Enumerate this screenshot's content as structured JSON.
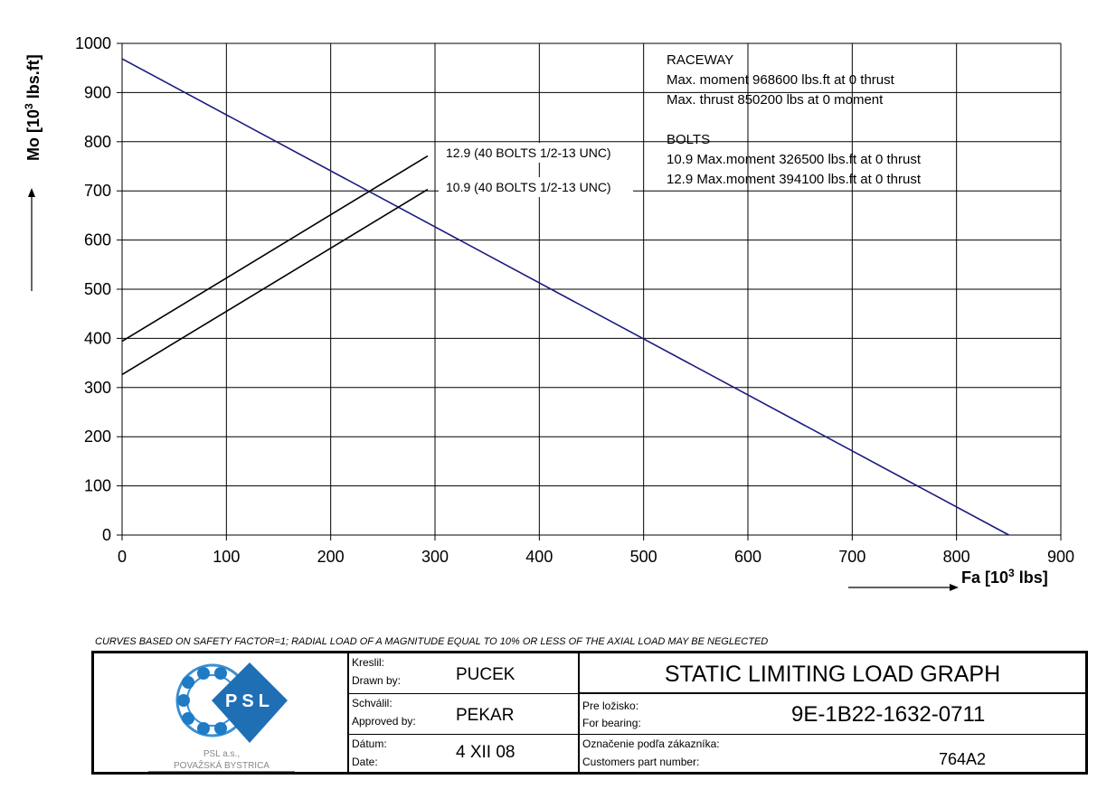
{
  "chart_data": {
    "type": "line",
    "ylabel": "Mo [10",
    "ylabel_superscript": "3",
    "ylabel_unit": " lbs.ft]",
    "xlabel": "Fa [10",
    "xlabel_superscript": "3",
    "xlabel_unit": " lbs]",
    "xlim": [
      0,
      900
    ],
    "ylim": [
      0,
      1000
    ],
    "x_ticks": [
      "0",
      "100",
      "200",
      "300",
      "400",
      "500",
      "600",
      "700",
      "800",
      "900"
    ],
    "y_ticks": [
      "0",
      "100",
      "200",
      "300",
      "400",
      "500",
      "600",
      "700",
      "800",
      "900",
      "1000"
    ],
    "grid": true,
    "series": [
      {
        "name": "RACEWAY",
        "color": "#1a1a80",
        "x": [
          0,
          850.2
        ],
        "y": [
          968.6,
          0
        ]
      },
      {
        "name": "12.9 (40 BOLTS 1/2-13 UNC)",
        "color": "#000000",
        "x": [
          0,
          293
        ],
        "y": [
          394.1,
          771
        ]
      },
      {
        "name": "10.9 (40 BOLTS 1/2-13 UNC)",
        "color": "#000000",
        "x": [
          0,
          293
        ],
        "y": [
          326.5,
          703
        ]
      }
    ],
    "annotations": [
      "RACEWAY",
      "Max. moment  968600 lbs.ft at 0 thrust",
      "Max. thrust  850200 lbs at 0 moment",
      "BOLTS",
      "10.9 Max.moment 326500 lbs.ft at 0 thrust",
      "12.9 Max.moment 394100 lbs.ft at 0 thrust"
    ]
  },
  "footnote": "CURVES BASED ON SAFETY FACTOR=1; RADIAL LOAD OF A MAGNITUDE EQUAL TO 10% OR LESS OF THE AXIAL LOAD MAY BE NEGLECTED",
  "title_block": {
    "logo_text": "PSL",
    "company_line1": "PSL  a.s.,",
    "company_line2": "POVAŽSKÁ  BYSTRICA",
    "drawn_label_sk": "Kreslil:",
    "drawn_label_en": "Drawn by:",
    "drawn_value": "PUCEK",
    "approved_label_sk": "Schválil:",
    "approved_label_en": "Approved by:",
    "approved_value": "PEKAR",
    "date_label_sk": "Dátum:",
    "date_label_en": "Date:",
    "date_value": "4 XII 08",
    "title": "STATIC LIMITING LOAD GRAPH",
    "bearing_label_sk": "Pre ložisko:",
    "bearing_label_en": "For bearing:",
    "bearing_value": "9E-1B22-1632-0711",
    "customer_label_sk": "Označenie podľa zákazníka:",
    "customer_label_en": "Customers part number:",
    "customer_value": "764A2"
  }
}
